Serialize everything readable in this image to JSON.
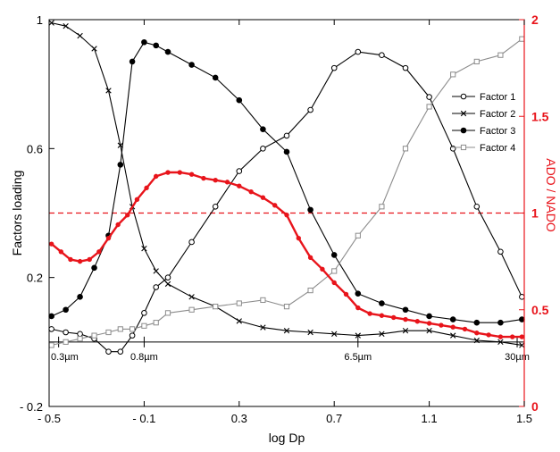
{
  "chart_data": {
    "type": "line",
    "xlabel": "log Dp",
    "ylabel": "Factors loading",
    "y2label": "ADO / NADO",
    "xlim": [
      -0.5,
      1.5
    ],
    "ylim": [
      -0.2,
      1.0
    ],
    "y2lim": [
      0,
      2
    ],
    "x_ticks": [
      -0.5,
      -0.1,
      0.3,
      0.7,
      1.1,
      1.5
    ],
    "x_tick_labels": [
      "- 0.5",
      "- 0.1",
      "0.3",
      "0.7",
      "1.1",
      "1.5"
    ],
    "y_ticks": [
      -0.2,
      0.2,
      0.6,
      1.0
    ],
    "y_tick_labels": [
      "- 0.2",
      "0.2",
      "0.6",
      "1"
    ],
    "y2_ticks": [
      0,
      0.5,
      1,
      1.5,
      2
    ],
    "y2_tick_labels": [
      "0",
      "0.5",
      "1",
      "1.5",
      "2"
    ],
    "zero_line": 0,
    "reference_line_y2": 1.0,
    "legend_position": "right",
    "series": [
      {
        "name": "Factor 1",
        "axis": "left",
        "marker": "open-circle",
        "color": "#000000",
        "x": [
          -0.49,
          -0.43,
          -0.37,
          -0.31,
          -0.25,
          -0.2,
          -0.15,
          -0.1,
          -0.05,
          0.0,
          0.1,
          0.2,
          0.3,
          0.4,
          0.5,
          0.6,
          0.7,
          0.8,
          0.9,
          1.0,
          1.1,
          1.2,
          1.3,
          1.4,
          1.49
        ],
        "y": [
          0.04,
          0.03,
          0.025,
          0.01,
          -0.03,
          -0.03,
          0.02,
          0.09,
          0.17,
          0.2,
          0.31,
          0.42,
          0.53,
          0.6,
          0.64,
          0.72,
          0.85,
          0.9,
          0.89,
          0.85,
          0.76,
          0.6,
          0.42,
          0.28,
          0.14
        ]
      },
      {
        "name": "Factor 2",
        "axis": "left",
        "marker": "cross",
        "color": "#000000",
        "x": [
          -0.49,
          -0.43,
          -0.37,
          -0.31,
          -0.25,
          -0.2,
          -0.15,
          -0.1,
          -0.05,
          0.0,
          0.1,
          0.2,
          0.3,
          0.4,
          0.5,
          0.6,
          0.7,
          0.8,
          0.9,
          1.0,
          1.1,
          1.2,
          1.3,
          1.4,
          1.49
        ],
        "y": [
          0.99,
          0.98,
          0.95,
          0.91,
          0.78,
          0.61,
          0.42,
          0.29,
          0.22,
          0.18,
          0.14,
          0.11,
          0.065,
          0.045,
          0.035,
          0.03,
          0.025,
          0.02,
          0.025,
          0.035,
          0.035,
          0.02,
          0.005,
          0.0,
          -0.01
        ]
      },
      {
        "name": "Factor 3",
        "axis": "left",
        "marker": "filled-circle",
        "color": "#000000",
        "x": [
          -0.49,
          -0.43,
          -0.37,
          -0.31,
          -0.25,
          -0.2,
          -0.15,
          -0.1,
          -0.05,
          0.0,
          0.1,
          0.2,
          0.3,
          0.4,
          0.5,
          0.6,
          0.7,
          0.8,
          0.9,
          1.0,
          1.1,
          1.2,
          1.3,
          1.4,
          1.49
        ],
        "y": [
          0.08,
          0.1,
          0.14,
          0.23,
          0.33,
          0.55,
          0.87,
          0.93,
          0.92,
          0.9,
          0.86,
          0.82,
          0.75,
          0.66,
          0.59,
          0.41,
          0.27,
          0.15,
          0.12,
          0.1,
          0.08,
          0.07,
          0.06,
          0.06,
          0.07
        ]
      },
      {
        "name": "Factor 4",
        "axis": "left",
        "marker": "open-square",
        "color": "#8c8c8c",
        "x": [
          -0.49,
          -0.43,
          -0.37,
          -0.31,
          -0.25,
          -0.2,
          -0.15,
          -0.1,
          -0.05,
          0.0,
          0.1,
          0.2,
          0.3,
          0.4,
          0.5,
          0.6,
          0.7,
          0.8,
          0.9,
          1.0,
          1.1,
          1.2,
          1.3,
          1.4,
          1.49
        ],
        "y": [
          -0.01,
          0.0,
          0.01,
          0.02,
          0.03,
          0.04,
          0.04,
          0.05,
          0.06,
          0.09,
          0.1,
          0.11,
          0.12,
          0.13,
          0.11,
          0.16,
          0.22,
          0.33,
          0.42,
          0.6,
          0.73,
          0.83,
          0.87,
          0.89,
          0.94
        ]
      },
      {
        "name": "",
        "axis": "right",
        "marker": "filled-circle-small",
        "color": "#e8141b",
        "x": [
          -0.49,
          -0.45,
          -0.41,
          -0.37,
          -0.33,
          -0.29,
          -0.25,
          -0.21,
          -0.17,
          -0.13,
          -0.09,
          -0.05,
          0.0,
          0.05,
          0.1,
          0.15,
          0.2,
          0.25,
          0.3,
          0.35,
          0.4,
          0.45,
          0.5,
          0.55,
          0.6,
          0.65,
          0.7,
          0.75,
          0.8,
          0.85,
          0.9,
          0.95,
          1.0,
          1.05,
          1.1,
          1.15,
          1.2,
          1.25,
          1.3,
          1.35,
          1.4,
          1.45,
          1.49
        ],
        "y": [
          0.84,
          0.8,
          0.76,
          0.75,
          0.76,
          0.8,
          0.87,
          0.94,
          0.99,
          1.07,
          1.13,
          1.19,
          1.21,
          1.21,
          1.2,
          1.18,
          1.17,
          1.16,
          1.14,
          1.11,
          1.08,
          1.04,
          0.99,
          0.87,
          0.77,
          0.71,
          0.64,
          0.58,
          0.51,
          0.48,
          0.47,
          0.46,
          0.45,
          0.44,
          0.43,
          0.42,
          0.41,
          0.4,
          0.38,
          0.37,
          0.36,
          0.36,
          0.36
        ]
      }
    ],
    "annotations": [
      {
        "text": "0.3µm",
        "x": -0.46
      },
      {
        "text": "0.8µm",
        "x": -0.1
      },
      {
        "text": "6.5µm",
        "x": 0.8
      },
      {
        "text": "30µm",
        "x": 1.47
      }
    ]
  }
}
